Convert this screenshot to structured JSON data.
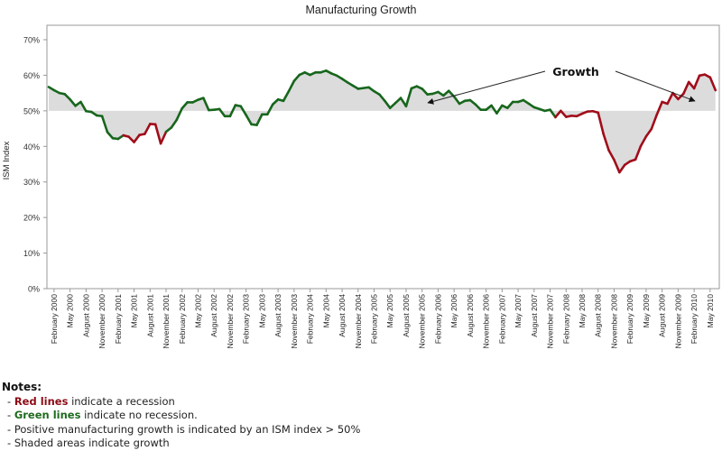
{
  "chart_data": {
    "type": "line",
    "title": "Manufacturing Growth",
    "xlabel": "",
    "ylabel": "ISM Index",
    "ylim": [
      0,
      70
    ],
    "yticks": [
      "0%",
      "10%",
      "20%",
      "30%",
      "40%",
      "50%",
      "60%",
      "70%"
    ],
    "baseline": 50,
    "start": "January 2000",
    "frequency": "monthly",
    "x_tick_labels": [
      "February 2000",
      "May 2000",
      "August 2000",
      "November 2000",
      "February 2001",
      "May 2001",
      "August 2001",
      "November 2001",
      "February 2002",
      "May 2002",
      "August 2002",
      "November 2002",
      "February 2003",
      "May 2003",
      "August 2003",
      "November 2003",
      "February 2004",
      "May 2004",
      "August 2004",
      "November 2004",
      "February 2005",
      "May 2005",
      "August 2005",
      "November 2005",
      "February 2006",
      "May 2006",
      "August 2006",
      "November 2006",
      "February 2007",
      "May 2007",
      "August 2007",
      "November 2007",
      "February 2008",
      "May 2008",
      "August 2008",
      "November 2008",
      "February 2009",
      "May 2009",
      "August 2009",
      "November 2009",
      "February 2010",
      "May 2010"
    ],
    "values": [
      56.7,
      55.8,
      55.0,
      54.7,
      53.2,
      51.4,
      52.5,
      49.9,
      49.7,
      48.7,
      48.5,
      44.0,
      42.3,
      42.1,
      43.1,
      42.7,
      41.2,
      43.2,
      43.5,
      46.3,
      46.2,
      40.8,
      44.1,
      45.3,
      47.5,
      50.7,
      52.4,
      52.4,
      53.1,
      53.6,
      50.2,
      50.3,
      50.5,
      48.5,
      48.5,
      51.6,
      51.3,
      48.8,
      46.2,
      46.0,
      49.0,
      49.0,
      51.8,
      53.2,
      52.8,
      55.5,
      58.4,
      60.1,
      60.8,
      60.1,
      60.8,
      60.8,
      61.3,
      60.5,
      59.9,
      59.0,
      58.0,
      57.1,
      56.2,
      56.4,
      56.6,
      55.5,
      54.6,
      52.8,
      50.8,
      52.2,
      53.6,
      51.3,
      56.3,
      56.9,
      56.2,
      54.6,
      54.8,
      55.3,
      54.3,
      55.6,
      54.0,
      52.0,
      52.8,
      53.0,
      51.8,
      50.3,
      50.3,
      51.5,
      49.3,
      51.5,
      50.8,
      52.5,
      52.5,
      53.0,
      52.0,
      51.0,
      50.5,
      50.0,
      50.3,
      48.2,
      50.0,
      48.3,
      48.6,
      48.5,
      49.2,
      49.8,
      49.9,
      49.5,
      43.5,
      38.9,
      36.2,
      32.7,
      34.8,
      35.8,
      36.3,
      40.1,
      42.8,
      44.9,
      48.9,
      52.5,
      52.0,
      55.0,
      53.3,
      54.8,
      58.1,
      56.3,
      59.9,
      60.2,
      59.4,
      55.8
    ],
    "recession_ranges": [
      [
        14,
        22
      ],
      [
        95,
        125
      ]
    ],
    "series_colors": {
      "recession": "#a00d1a",
      "no_recession": "#17661c",
      "shade": "#dcdcdc"
    },
    "annotation": {
      "text": "Growth"
    }
  },
  "notes": {
    "heading": "Notes:",
    "line1_em": "Red lines",
    "line1_rest": " indicate a recession",
    "line2_em": "Green lines",
    "line2_rest": " indicate no recession.",
    "line3": "Positive manufacturing growth is indicated by an ISM index > 50%",
    "line4": "Shaded areas indicate growth"
  }
}
